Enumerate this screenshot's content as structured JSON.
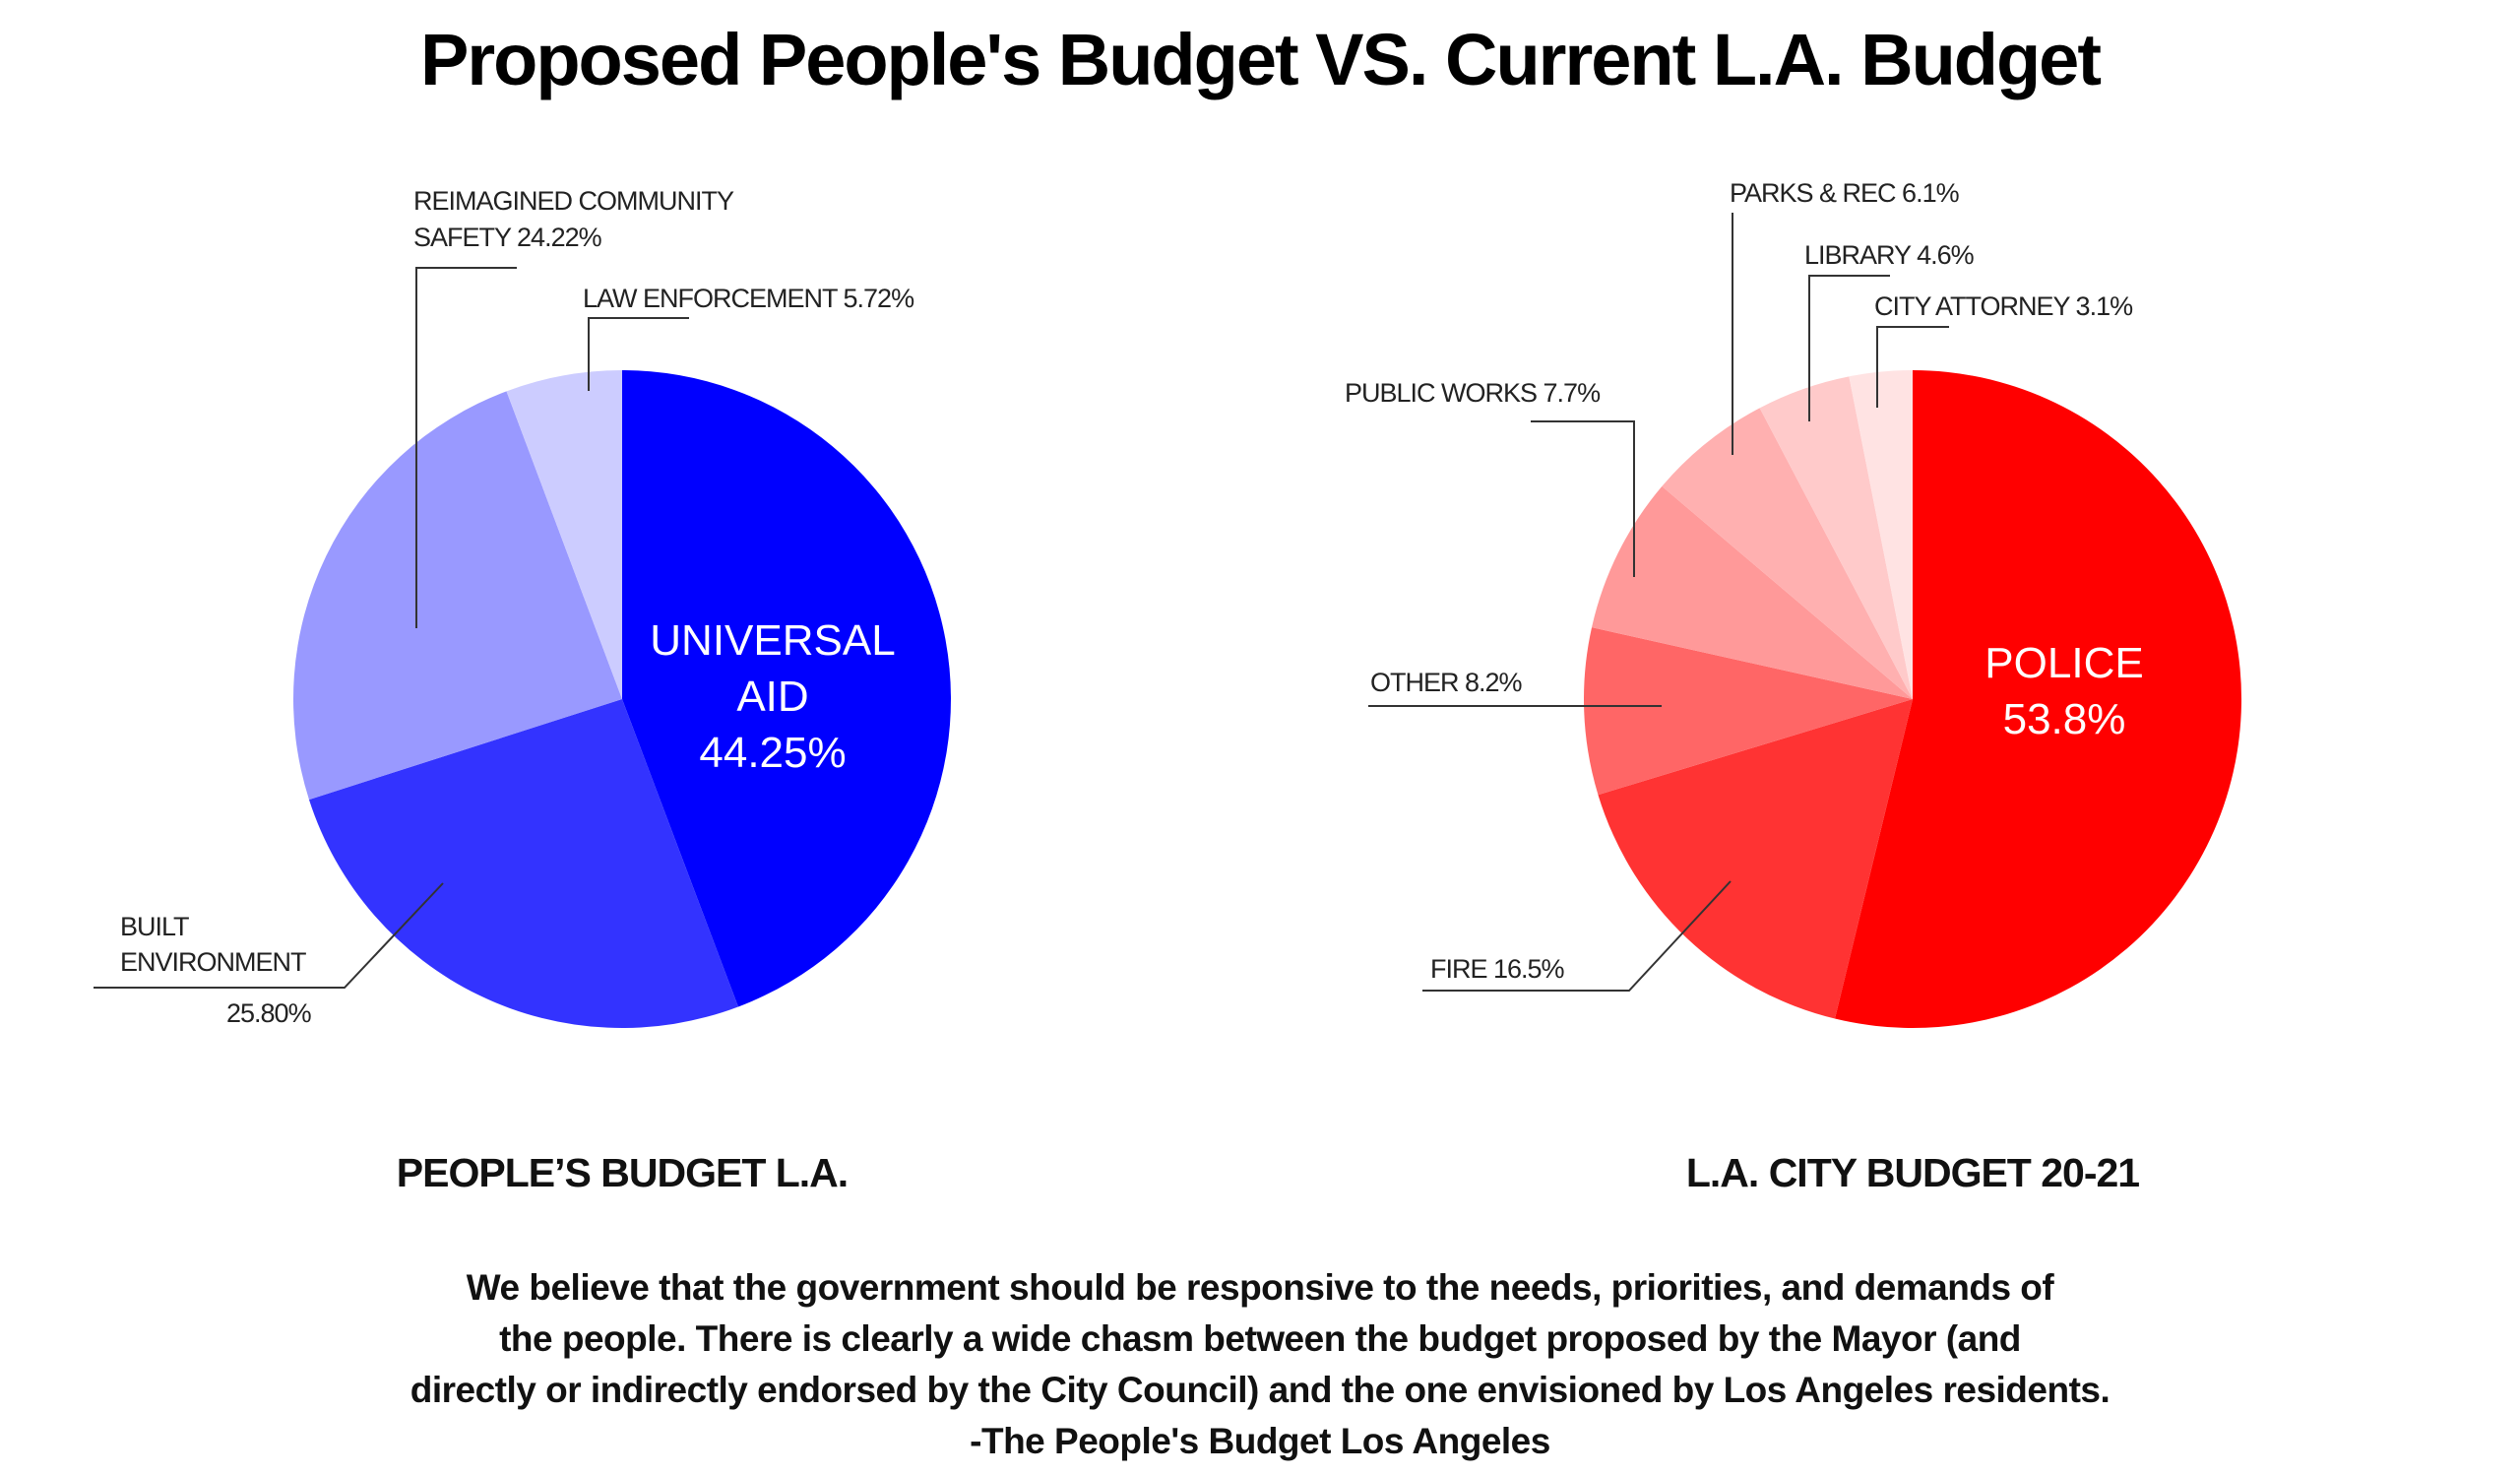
{
  "title": "Proposed People's Budget VS. Current L.A. Budget",
  "chart_data": [
    {
      "type": "pie",
      "caption": "PEOPLE’S BUDGET L.A.",
      "slices": [
        {
          "name": "UNIVERSAL AID",
          "value": 44.25,
          "label_lines": [
            "UNIVERSAL",
            "AID",
            "44.25%"
          ],
          "color": "#0000ff"
        },
        {
          "name": "BUILT ENVIRONMENT",
          "value": 25.8,
          "label_lines": [
            "BUILT",
            "ENVIRONMENT",
            "25.80%"
          ],
          "color": "#3333ff"
        },
        {
          "name": "REIMAGINED COMMUNITY SAFETY",
          "value": 24.22,
          "label_lines": [
            "REIMAGINED COMMUNITY",
            "SAFETY 24.22%"
          ],
          "color": "#9999ff"
        },
        {
          "name": "LAW ENFORCEMENT",
          "value": 5.72,
          "label_lines": [
            "LAW ENFORCEMENT 5.72%"
          ],
          "color": "#ccccff"
        }
      ]
    },
    {
      "type": "pie",
      "caption": "L.A. CITY BUDGET 20-21",
      "slices": [
        {
          "name": "POLICE",
          "value": 53.8,
          "label_lines": [
            "POLICE",
            "53.8%"
          ],
          "color": "#ff0000"
        },
        {
          "name": "FIRE",
          "value": 16.5,
          "label_lines": [
            "FIRE 16.5%"
          ],
          "color": "#ff3333"
        },
        {
          "name": "OTHER",
          "value": 8.2,
          "label_lines": [
            "OTHER 8.2%"
          ],
          "color": "#ff6666"
        },
        {
          "name": "PUBLIC WORKS",
          "value": 7.7,
          "label_lines": [
            "PUBLIC WORKS 7.7%"
          ],
          "color": "#ff9999"
        },
        {
          "name": "PARKS & REC",
          "value": 6.1,
          "label_lines": [
            "PARKS & REC 6.1%"
          ],
          "color": "#ffb0b0"
        },
        {
          "name": "LIBRARY",
          "value": 4.6,
          "label_lines": [
            "LIBRARY 4.6%"
          ],
          "color": "#ffcaca"
        },
        {
          "name": "CITY ATTORNEY",
          "value": 3.1,
          "label_lines": [
            "CITY ATTORNEY 3.1%"
          ],
          "color": "#ffe3e3"
        }
      ]
    }
  ],
  "quote": {
    "lines": [
      "We believe that the government should be responsive to the needs, priorities, and demands of",
      "the people. There is clearly a wide chasm between the budget proposed by the Mayor (and",
      "directly or indirectly endorsed by the City Council) and the one envisioned by Los Angeles residents.",
      "-The People's Budget Los Angeles"
    ]
  }
}
